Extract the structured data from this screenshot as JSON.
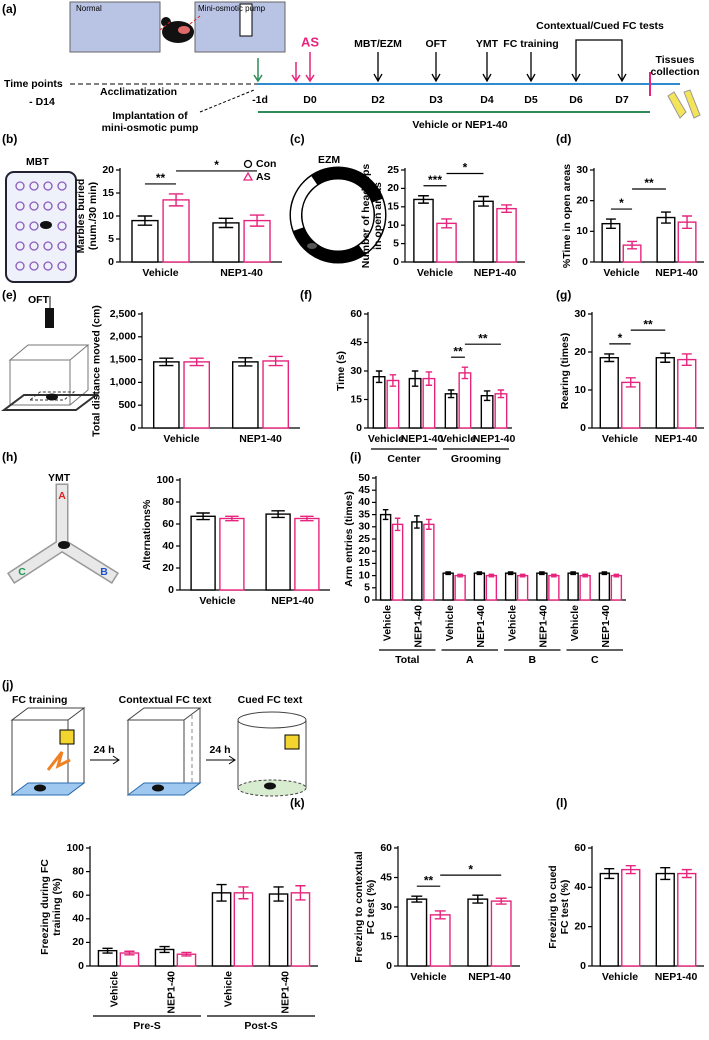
{
  "timeline": {
    "panel": "(a)",
    "images": [
      "Normal",
      "Mini-osmotic pump"
    ],
    "row_label": "Time points",
    "start": "- D14",
    "acclimatization": "Acclimatization",
    "implantation": [
      "Implantation of",
      "mini-osmotic pump"
    ],
    "stress": "AS",
    "days": [
      "-1d",
      "D0",
      "D2",
      "D3",
      "D4",
      "D5",
      "D6",
      "D7"
    ],
    "events": [
      "MBT/EZM",
      "OFT",
      "YMT",
      "FC training"
    ],
    "fc_tests": "Contextual/Cued FC tests",
    "end": [
      "Tissues",
      "collection"
    ],
    "treatment": "Vehicle or NEP1-40"
  },
  "chart_data": [
    {
      "type": "bar",
      "panel": "(b)",
      "illustration": "MBT",
      "ylabel": [
        "Marbles buried",
        "(num./30 min)"
      ],
      "categories": [
        "Vehicle",
        "NEP1-40"
      ],
      "legend": "top-right",
      "series": [
        {
          "name": "Con",
          "color": "#000000",
          "values": [
            9,
            8.5
          ],
          "errors": [
            1,
            1
          ]
        },
        {
          "name": "AS",
          "color": "#e6247d",
          "values": [
            13.5,
            9
          ],
          "errors": [
            1.3,
            1.2
          ]
        }
      ],
      "ylim": [
        0,
        20
      ],
      "yticks": [
        0,
        5,
        10,
        15,
        20
      ],
      "significance": [
        {
          "text": "**",
          "a": [
            0,
            0
          ],
          "b": [
            1,
            0
          ]
        },
        {
          "text": "*",
          "a": [
            1,
            0
          ],
          "b": [
            1,
            1
          ]
        }
      ]
    },
    {
      "type": "bar",
      "panel": "(c)",
      "illustration": "EZM",
      "ylabel": [
        "Number of head dips",
        "in open areas"
      ],
      "categories": [
        "Vehicle",
        "NEP1-40"
      ],
      "series": [
        {
          "color": "#000000",
          "values": [
            17,
            16.5
          ],
          "errors": [
            1,
            1.3
          ]
        },
        {
          "color": "#e6247d",
          "values": [
            10.5,
            14.5
          ],
          "errors": [
            1.2,
            1
          ]
        }
      ],
      "ylim": [
        0,
        25
      ],
      "yticks": [
        0,
        5,
        10,
        15,
        20,
        25
      ],
      "significance": [
        {
          "text": "***",
          "a": [
            0,
            0
          ],
          "b": [
            1,
            0
          ]
        },
        {
          "text": "*",
          "a": [
            1,
            0
          ],
          "b": [
            0,
            1
          ]
        }
      ]
    },
    {
      "type": "bar",
      "panel": "(d)",
      "ylabel": [
        "%Time in open areas"
      ],
      "categories": [
        "Vehicle",
        "NEP1-40"
      ],
      "series": [
        {
          "color": "#000000",
          "values": [
            12.5,
            14.5
          ],
          "errors": [
            1.5,
            1.8
          ]
        },
        {
          "color": "#e6247d",
          "values": [
            5.5,
            13
          ],
          "errors": [
            1.2,
            2
          ]
        }
      ],
      "ylim": [
        0,
        30
      ],
      "yticks": [
        0,
        10,
        20,
        30
      ],
      "significance": [
        {
          "text": "*",
          "a": [
            0,
            0
          ],
          "b": [
            1,
            0
          ]
        },
        {
          "text": "**",
          "a": [
            1,
            0
          ],
          "b": [
            0,
            1
          ]
        }
      ]
    },
    {
      "type": "bar",
      "panel": "(e)",
      "illustration": "OFT",
      "ylabel": [
        "Total distance moved (cm)"
      ],
      "categories": [
        "Vehicle",
        "NEP1-40"
      ],
      "series": [
        {
          "color": "#000000",
          "values": [
            1450,
            1450
          ],
          "errors": [
            80,
            90
          ]
        },
        {
          "color": "#e6247d",
          "values": [
            1450,
            1470
          ],
          "errors": [
            80,
            100
          ]
        }
      ],
      "ylim": [
        0,
        2500
      ],
      "yticks": [
        0,
        500,
        {
          "value": 1000,
          "label": "1,000"
        },
        {
          "value": 1500,
          "label": "1,500"
        },
        {
          "value": 2000,
          "label": "2,000"
        },
        {
          "value": 2500,
          "label": "2,500"
        }
      ]
    },
    {
      "type": "bar",
      "panel": "(f)",
      "ylabel": [
        "Time (s)"
      ],
      "categories": [
        "Vehicle",
        "NEP1-40",
        "Vehicle",
        "NEP1-40"
      ],
      "groups": [
        "Center",
        "Grooming"
      ],
      "series": [
        {
          "color": "#000000",
          "values": [
            27,
            26,
            18,
            17
          ],
          "errors": [
            3,
            4,
            2,
            2.5
          ]
        },
        {
          "color": "#e6247d",
          "values": [
            25,
            26,
            29,
            18
          ],
          "errors": [
            3,
            3.5,
            3,
            2
          ]
        }
      ],
      "ylim": [
        0,
        60
      ],
      "yticks": [
        0,
        15,
        30,
        45,
        60
      ],
      "significance": [
        {
          "text": "**",
          "a": [
            0,
            2
          ],
          "b": [
            1,
            2
          ]
        },
        {
          "text": "**",
          "a": [
            1,
            2
          ],
          "b": [
            1,
            3
          ]
        }
      ]
    },
    {
      "type": "bar",
      "panel": "(g)",
      "ylabel": [
        "Rearing (times)"
      ],
      "categories": [
        "Vehicle",
        "NEP1-40"
      ],
      "series": [
        {
          "color": "#000000",
          "values": [
            18.5,
            18.5
          ],
          "errors": [
            1,
            1.2
          ]
        },
        {
          "color": "#e6247d",
          "values": [
            12,
            18
          ],
          "errors": [
            1.2,
            1.5
          ]
        }
      ],
      "ylim": [
        0,
        30
      ],
      "yticks": [
        0,
        10,
        20,
        30
      ],
      "significance": [
        {
          "text": "*",
          "a": [
            0,
            0
          ],
          "b": [
            1,
            0
          ]
        },
        {
          "text": "**",
          "a": [
            1,
            0
          ],
          "b": [
            0,
            1
          ]
        }
      ]
    },
    {
      "type": "bar",
      "panel": "(h)",
      "illustration": "YMT",
      "arms": [
        "A",
        "B",
        "C"
      ],
      "ylabel": [
        "Alternations%"
      ],
      "categories": [
        "Vehicle",
        "NEP1-40"
      ],
      "series": [
        {
          "color": "#000000",
          "values": [
            67,
            69
          ],
          "errors": [
            3,
            3
          ]
        },
        {
          "color": "#e6247d",
          "values": [
            65,
            65
          ],
          "errors": [
            2,
            2
          ]
        }
      ],
      "ylim": [
        0,
        100
      ],
      "yticks": [
        0,
        20,
        40,
        60,
        80,
        100
      ]
    },
    {
      "type": "bar",
      "panel": "(i)",
      "ylabel": [
        "Arm entries (times)"
      ],
      "categories": [
        "Vehicle",
        "NEP1-40",
        "Vehicle",
        "NEP1-40",
        "Vehicle",
        "NEP1-40",
        "Vehicle",
        "NEP1-40"
      ],
      "groups": [
        "Total",
        "A",
        "B",
        "C"
      ],
      "series": [
        {
          "color": "#000000",
          "values": [
            35,
            32,
            11,
            11,
            11,
            11,
            11,
            11
          ],
          "errors": [
            2,
            2.5,
            0.5,
            0.5,
            0.5,
            0.5,
            0.5,
            0.5
          ]
        },
        {
          "color": "#e6247d",
          "values": [
            31,
            31,
            10,
            10,
            10,
            10,
            10,
            10
          ],
          "errors": [
            2.5,
            2,
            0.5,
            0.5,
            0.5,
            0.5,
            0.5,
            0.5
          ]
        }
      ],
      "ylim": [
        0,
        50
      ],
      "yticks": [
        0,
        5,
        10,
        15,
        20,
        25,
        30,
        35,
        40,
        45,
        50
      ]
    },
    {
      "type": "bar",
      "panel": "(j)",
      "protocol": [
        "FC training",
        "Contextual FC text",
        "Cued FC text"
      ],
      "interval": "24 h",
      "ylabel": [
        "Freezing during FC",
        "training (%)"
      ],
      "categories": [
        "Vehicle",
        "NEP1-40",
        "Vehicle",
        "NEP1-40"
      ],
      "groups": [
        "Pre-S",
        "Post-S"
      ],
      "series": [
        {
          "color": "#000000",
          "values": [
            13,
            14,
            62,
            61
          ],
          "errors": [
            2,
            2.5,
            7,
            6
          ]
        },
        {
          "color": "#e6247d",
          "values": [
            11,
            10,
            62,
            62
          ],
          "errors": [
            1.5,
            1.5,
            5,
            6
          ]
        }
      ],
      "ylim": [
        0,
        100
      ],
      "yticks": [
        0,
        20,
        40,
        60,
        80,
        100
      ]
    },
    {
      "type": "bar",
      "panel": "(k)",
      "ylabel": [
        "Freezing to contextual",
        "FC test (%)"
      ],
      "categories": [
        "Vehicle",
        "NEP1-40"
      ],
      "series": [
        {
          "color": "#000000",
          "values": [
            34,
            34
          ],
          "errors": [
            1.5,
            2
          ]
        },
        {
          "color": "#e6247d",
          "values": [
            26,
            33
          ],
          "errors": [
            2,
            1.5
          ]
        }
      ],
      "ylim": [
        0,
        60
      ],
      "yticks": [
        0,
        15,
        30,
        45,
        60
      ],
      "significance": [
        {
          "text": "**",
          "a": [
            0,
            0
          ],
          "b": [
            1,
            0
          ]
        },
        {
          "text": "*",
          "a": [
            1,
            0
          ],
          "b": [
            1,
            1
          ]
        }
      ]
    },
    {
      "type": "bar",
      "panel": "(l)",
      "ylabel": [
        "Freezing to cued",
        "FC test (%)"
      ],
      "categories": [
        "Vehicle",
        "NEP1-40"
      ],
      "series": [
        {
          "color": "#000000",
          "values": [
            47,
            47
          ],
          "errors": [
            2.5,
            3
          ]
        },
        {
          "color": "#e6247d",
          "values": [
            49,
            47
          ],
          "errors": [
            2,
            2
          ]
        }
      ],
      "ylim": [
        0,
        60
      ],
      "yticks": [
        0,
        20,
        40,
        60
      ]
    }
  ]
}
